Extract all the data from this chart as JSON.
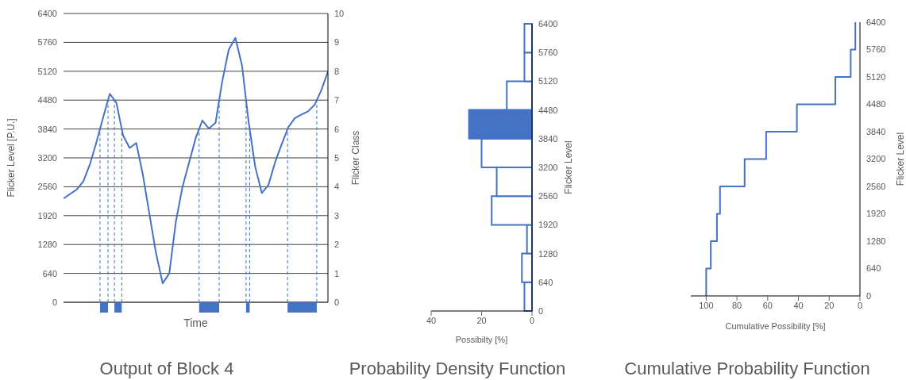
{
  "chart_data": [
    {
      "type": "line",
      "title": "Output of Block 4",
      "xlabel": "Time",
      "ylabel": "Flicker Level [P.U.]",
      "y2label": "Flicker Class",
      "categories": [
        null,
        null,
        null,
        null,
        null,
        null,
        null,
        null,
        null,
        null,
        null,
        null,
        null,
        null,
        null,
        null,
        null,
        null,
        null,
        null,
        null,
        null,
        null,
        null,
        null,
        null,
        null,
        null,
        null,
        null,
        null,
        null,
        null,
        null,
        null,
        null,
        null,
        null,
        null,
        null,
        null
      ],
      "series": [
        {
          "color": "#4472c4",
          "values": [
            2300,
            2400,
            2500,
            2680,
            3060,
            3560,
            4100,
            4620,
            4420,
            3700,
            3420,
            3530,
            2830,
            1950,
            1080,
            420,
            640,
            1790,
            2560,
            3100,
            3640,
            4030,
            3850,
            3980,
            4890,
            5600,
            5860,
            5250,
            4000,
            3000,
            2420,
            2600,
            3100,
            3500,
            3880,
            4080,
            4160,
            4230,
            4380,
            4700,
            5110
          ]
        }
      ],
      "ylim": [
        0,
        6400
      ],
      "yticks": [
        0,
        640,
        1280,
        1920,
        2560,
        3200,
        3840,
        4480,
        5120,
        5760,
        6400
      ],
      "y2lim": [
        0,
        10
      ],
      "y2ticks": [
        0,
        1,
        2,
        3,
        4,
        5,
        6,
        7,
        8,
        9,
        10
      ],
      "tick_labels": "y",
      "grid": "y"
    },
    {
      "type": "histogram",
      "orientation": "horizontal",
      "title": "Probability Density Function",
      "xlabel": "Possibilty [%]",
      "ylabel": "Flicker Level",
      "bins": [
        0,
        640,
        1280,
        1920,
        2560,
        3200,
        3840,
        4480,
        5120,
        5760,
        6400
      ],
      "values": [
        3,
        4,
        2,
        16,
        14,
        20,
        25,
        10,
        3,
        3
      ],
      "color": "#4472c4",
      "colors": [
        "#ffffff",
        "#ffffff",
        "#ffffff",
        "#ffffff",
        "#ffffff",
        "#ffffff",
        "#4472c4",
        "#ffffff",
        "#ffffff",
        "#ffffff"
      ],
      "xlim": [
        40,
        0
      ],
      "xticks": [
        40,
        20,
        0
      ],
      "ylim": [
        0,
        6400
      ],
      "yticks": [
        0,
        640,
        1280,
        1920,
        2560,
        3200,
        3840,
        4480,
        5120,
        5760,
        6400
      ]
    },
    {
      "type": "line",
      "title": "Cumulative Probability Function",
      "xlabel": "Cumulative Possibility [%]",
      "ylabel": "Flicker Level",
      "x": [
        100,
        100,
        97,
        97,
        93,
        93,
        91,
        91,
        75,
        75,
        61,
        61,
        41,
        41,
        16,
        16,
        6,
        6,
        3,
        3
      ],
      "series": [
        {
          "color": "#4472c4",
          "values": [
            0,
            640,
            640,
            1280,
            1280,
            1920,
            1920,
            2560,
            2560,
            3200,
            3200,
            3840,
            3840,
            4480,
            4480,
            5120,
            5120,
            5760,
            5760,
            6400
          ]
        }
      ],
      "xlim": [
        110,
        0
      ],
      "xticks": [
        100,
        80,
        60,
        40,
        20,
        0
      ],
      "ylim": [
        0,
        6400
      ],
      "yticks": [
        0,
        640,
        1280,
        1920,
        2560,
        3200,
        3840,
        4480,
        5120,
        5760,
        6400
      ]
    }
  ]
}
